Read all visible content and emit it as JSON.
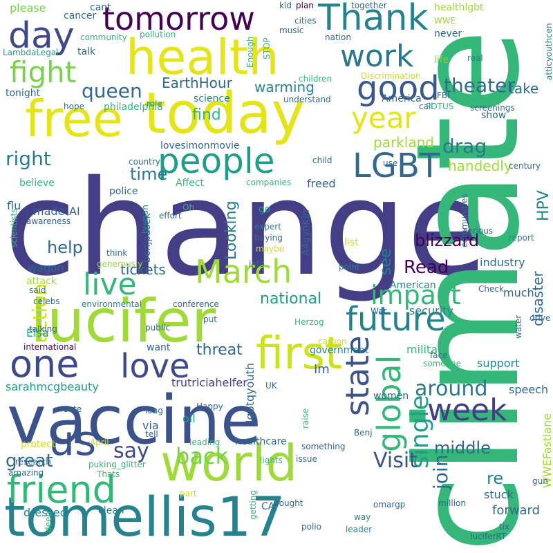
{
  "palette": {
    "dark_purple": "#440154",
    "indigo": "#433e85",
    "blue": "#31688e",
    "teal": "#26828e",
    "green_teal": "#1f9e89",
    "green": "#35b779",
    "light_green": "#6ece58",
    "lime": "#b5de2b",
    "yellow": "#fde725"
  },
  "words": [
    {
      "text": "change",
      "c": "#433e85"
    },
    {
      "text": "climate",
      "c": "#35b779"
    },
    {
      "text": "vaccine",
      "c": "#3b528b"
    },
    {
      "text": "lucifer",
      "c": "#a0da39"
    },
    {
      "text": "free",
      "c": "#e4e419"
    },
    {
      "text": "today",
      "c": "#e4e419"
    },
    {
      "text": "health",
      "c": "#e4e419"
    },
    {
      "text": "tomellis17",
      "c": "#26828e"
    },
    {
      "text": "world",
      "c": "#a0da39"
    },
    {
      "text": "first",
      "c": "#cde11d"
    },
    {
      "text": "tomorrow",
      "c": "#440154"
    },
    {
      "text": "Thank",
      "c": "#26828e"
    },
    {
      "text": "day",
      "c": "#3e4989"
    },
    {
      "text": "work",
      "c": "#2a788e"
    },
    {
      "text": "good",
      "c": "#38588c"
    },
    {
      "text": "fight",
      "c": "#7ad151"
    },
    {
      "text": "people",
      "c": "#1f9e89"
    },
    {
      "text": "LGBT",
      "c": "#31688e"
    },
    {
      "text": "year",
      "c": "#e4e419"
    },
    {
      "text": "queen",
      "c": "#31688e"
    },
    {
      "text": "theater",
      "c": "#31688e"
    },
    {
      "text": "EarthHour",
      "c": "#31688e"
    },
    {
      "text": "find",
      "c": "#35b779"
    },
    {
      "text": "warming",
      "c": "#26828e"
    },
    {
      "text": "take",
      "c": "#31688e"
    },
    {
      "text": "drag",
      "c": "#2a788e"
    },
    {
      "text": "right",
      "c": "#2a788e"
    },
    {
      "text": "parkland",
      "c": "#a0da39"
    },
    {
      "text": "time",
      "c": "#2a788e"
    },
    {
      "text": "handedly",
      "c": "#a0da39"
    },
    {
      "text": "HPV",
      "c": "#26828e"
    },
    {
      "text": "March",
      "c": "#a0da39"
    },
    {
      "text": "live",
      "c": "#35b779"
    },
    {
      "text": "Looking",
      "c": "#2a788e"
    },
    {
      "text": "impact",
      "c": "#35b779"
    },
    {
      "text": "blizzard",
      "c": "#440154"
    },
    {
      "text": "Read",
      "c": "#440154"
    },
    {
      "text": "see",
      "c": "#26828e"
    },
    {
      "text": "help",
      "c": "#31688e"
    },
    {
      "text": "action",
      "c": "#cde11d"
    },
    {
      "text": "tickets",
      "c": "#31688e"
    },
    {
      "text": "future",
      "c": "#26828e"
    },
    {
      "text": "global",
      "c": "#35b779"
    },
    {
      "text": "state",
      "c": "#3b528b"
    },
    {
      "text": "single",
      "c": "#1f9e89"
    },
    {
      "text": "join",
      "c": "#31688e"
    },
    {
      "text": "one",
      "c": "#3e4989"
    },
    {
      "text": "love",
      "c": "#3e4989"
    },
    {
      "text": "national",
      "c": "#1f9e89"
    },
    {
      "text": "week",
      "c": "#433e85"
    },
    {
      "text": "around",
      "c": "#2a788e"
    },
    {
      "text": "threat",
      "c": "#31688e"
    },
    {
      "text": "us",
      "c": "#3b528b"
    },
    {
      "text": "friend",
      "c": "#35b779"
    },
    {
      "text": "say",
      "c": "#3e4989"
    },
    {
      "text": "back",
      "c": "#7ad151"
    },
    {
      "text": "great",
      "c": "#31688e"
    },
    {
      "text": "Visit",
      "c": "#3b528b"
    },
    {
      "text": "middle",
      "c": "#31688e"
    },
    {
      "text": "disaster",
      "c": "#31688e"
    },
    {
      "text": "security",
      "c": "#26828e"
    },
    {
      "text": "military",
      "c": "#35b779"
    },
    {
      "text": "government",
      "c": "#26828e"
    },
    {
      "text": "Im",
      "c": "#31688e"
    },
    {
      "text": "trutriciahelfer",
      "c": "#433e85"
    },
    {
      "text": "lgbtqyouth",
      "c": "#31688e"
    },
    {
      "text": "sarahmcgbeauty",
      "c": "#1f9e89"
    },
    {
      "text": "Elsa",
      "c": "#1f9e89"
    },
    {
      "text": "attack",
      "c": "#a0da39"
    },
    {
      "text": "wagon",
      "c": "#31688e"
    },
    {
      "text": "American",
      "c": "#26828e"
    },
    {
      "text": "much",
      "c": "#31688e"
    },
    {
      "text": "industry",
      "c": "#31688e"
    },
    {
      "text": "report",
      "c": "#26828e"
    },
    {
      "text": "support",
      "c": "#26828e"
    },
    {
      "text": "speech",
      "c": "#31688e"
    },
    {
      "text": "WWEFastlane",
      "c": "#a0da39"
    },
    {
      "text": "re",
      "c": "#26828e"
    },
    {
      "text": "stuck",
      "c": "#31688e"
    },
    {
      "text": "forward",
      "c": "#31688e"
    },
    {
      "text": "dressed",
      "c": "#26828e"
    },
    {
      "text": "clean",
      "c": "#26828e"
    },
    {
      "text": "healthcare",
      "c": "#31688e"
    },
    {
      "text": "women",
      "c": "#31688e"
    },
    {
      "text": "oil",
      "c": "#1f9e89"
    },
    {
      "text": "via",
      "c": "#31688e"
    },
    {
      "text": "protect",
      "c": "#cde11d"
    },
    {
      "text": "made",
      "c": "#31688e"
    },
    {
      "text": "AI",
      "c": "#31688e"
    },
    {
      "text": "believe",
      "c": "#35b779"
    },
    {
      "text": "flu",
      "c": "#31688e"
    },
    {
      "text": "police",
      "c": "#31688e"
    },
    {
      "text": "freed",
      "c": "#31688e"
    },
    {
      "text": "lovesimonmovie",
      "c": "#31688e"
    },
    {
      "text": "Affect",
      "c": "#35b779"
    },
    {
      "text": "benjpasek",
      "c": "#31688e"
    },
    {
      "text": "A4gyfiKjrr",
      "c": "#31688e"
    },
    {
      "text": "go",
      "c": "#1f9e89"
    },
    {
      "text": "human",
      "c": "#26828e"
    },
    {
      "text": "please",
      "c": "#7ad151"
    },
    {
      "text": "cancer",
      "c": "#31688e"
    },
    {
      "text": "cant",
      "c": "#31688e"
    },
    {
      "text": "kid",
      "c": "#31688e"
    },
    {
      "text": "plan",
      "c": "#440154"
    },
    {
      "text": "cities",
      "c": "#31688e"
    },
    {
      "text": "music",
      "c": "#31688e"
    },
    {
      "text": "nation",
      "c": "#31688e"
    },
    {
      "text": "together",
      "c": "#31688e"
    },
    {
      "text": "healthlgbt",
      "c": "#a0da39"
    },
    {
      "text": "WWE",
      "c": "#a0da39"
    },
    {
      "text": "never",
      "c": "#31688e"
    },
    {
      "text": "life",
      "c": "#7ad151"
    },
    {
      "text": "real",
      "c": "#26828e"
    },
    {
      "text": "community",
      "c": "#35b779"
    },
    {
      "text": "pollution",
      "c": "#35b779"
    },
    {
      "text": "LambdaLegal",
      "c": "#1f9e89"
    },
    {
      "text": "talk",
      "c": "#31688e"
    },
    {
      "text": "tonight",
      "c": "#31688e"
    },
    {
      "text": "role",
      "c": "#26828e"
    },
    {
      "text": "philadelphia",
      "c": "#35b779"
    },
    {
      "text": "hope",
      "c": "#31688e"
    },
    {
      "text": "science",
      "c": "#26828e"
    },
    {
      "text": "understand",
      "c": "#31688e"
    },
    {
      "text": "America",
      "c": "#31688e"
    },
    {
      "text": "Discrimination",
      "c": "#cde11d"
    },
    {
      "text": "children",
      "c": "#35b779"
    },
    {
      "text": "call",
      "c": "#31688e"
    },
    {
      "text": "POTUS",
      "c": "#35b779"
    },
    {
      "text": "FBI",
      "c": "#31688e"
    },
    {
      "text": "screenings",
      "c": "#31688e"
    },
    {
      "text": "show",
      "c": "#31688e"
    },
    {
      "text": "atticyouthcen",
      "c": "#26828e"
    },
    {
      "text": "Enough",
      "c": "#35b779"
    },
    {
      "text": "STOP",
      "c": "#35b779"
    },
    {
      "text": "country",
      "c": "#31688e"
    },
    {
      "text": "child",
      "c": "#31688e"
    },
    {
      "text": "use",
      "c": "#31688e"
    },
    {
      "text": "century",
      "c": "#31688e"
    },
    {
      "text": "communities",
      "c": "#31688e"
    },
    {
      "text": "companies",
      "c": "#35b779"
    },
    {
      "text": "scientists",
      "c": "#35b779"
    },
    {
      "text": "Oh",
      "c": "#35b779"
    },
    {
      "text": "effort",
      "c": "#31688e"
    },
    {
      "text": "awareness",
      "c": "#31688e"
    },
    {
      "text": "expert",
      "c": "#26828e"
    },
    {
      "text": "buying",
      "c": "#31688e"
    },
    {
      "text": "list",
      "c": "#cde11d"
    },
    {
      "text": "serious",
      "c": "#31688e"
    },
    {
      "text": "maybe",
      "c": "#cde11d"
    },
    {
      "text": "think",
      "c": "#31688e"
    },
    {
      "text": "generously",
      "c": "#a0da39"
    },
    {
      "text": "info",
      "c": "#31688e"
    },
    {
      "text": "point",
      "c": "#26828e"
    },
    {
      "text": "said",
      "c": "#31688e"
    },
    {
      "text": "celebs",
      "c": "#31688e"
    },
    {
      "text": "environmental",
      "c": "#26828e"
    },
    {
      "text": "conference",
      "c": "#31688e"
    },
    {
      "text": "Check",
      "c": "#31688e"
    },
    {
      "text": "drive",
      "c": "#31688e"
    },
    {
      "text": "talking",
      "c": "#31688e"
    },
    {
      "text": "public",
      "c": "#31688e"
    },
    {
      "text": "War",
      "c": "#31688e"
    },
    {
      "text": "put",
      "c": "#31688e"
    },
    {
      "text": "Herzog",
      "c": "#35b779"
    },
    {
      "text": "water",
      "c": "#31688e"
    },
    {
      "text": "carbon",
      "c": "#cde11d"
    },
    {
      "text": "international",
      "c": "#440154"
    },
    {
      "text": "want",
      "c": "#31688e"
    },
    {
      "text": "face",
      "c": "#31688e"
    },
    {
      "text": "someone",
      "c": "#35b779"
    },
    {
      "text": "UK",
      "c": "#31688e"
    },
    {
      "text": "create",
      "c": "#31688e"
    },
    {
      "text": "long",
      "c": "#31688e"
    },
    {
      "text": "tell",
      "c": "#31688e"
    },
    {
      "text": "Happy",
      "c": "#31688e"
    },
    {
      "text": "raise",
      "c": "#35b779"
    },
    {
      "text": "Benj",
      "c": "#31688e"
    },
    {
      "text": "April",
      "c": "#cde11d"
    },
    {
      "text": "research",
      "c": "#31688e"
    },
    {
      "text": "leading",
      "c": "#35b779"
    },
    {
      "text": "something",
      "c": "#31688e"
    },
    {
      "text": "amazing",
      "c": "#31688e"
    },
    {
      "text": "puking_glitter",
      "c": "#35b779"
    },
    {
      "text": "Thats",
      "c": "#35b779"
    },
    {
      "text": "lights",
      "c": "#35b779"
    },
    {
      "text": "issue",
      "c": "#31688e"
    },
    {
      "text": "gun",
      "c": "#31688e"
    },
    {
      "text": "part",
      "c": "#cde11d"
    },
    {
      "text": "getting",
      "c": "#35b779"
    },
    {
      "text": "bought",
      "c": "#31688e"
    },
    {
      "text": "CA",
      "c": "#31688e"
    },
    {
      "text": "omargp",
      "c": "#31688e"
    },
    {
      "text": "million",
      "c": "#31688e"
    },
    {
      "text": "tix",
      "c": "#31688e"
    },
    {
      "text": "deep",
      "c": "#35b779"
    },
    {
      "text": "polio",
      "c": "#31688e"
    },
    {
      "text": "way",
      "c": "#26828e"
    },
    {
      "text": "leader",
      "c": "#26828e"
    },
    {
      "text": "luciferRT",
      "c": "#31688e"
    }
  ]
}
